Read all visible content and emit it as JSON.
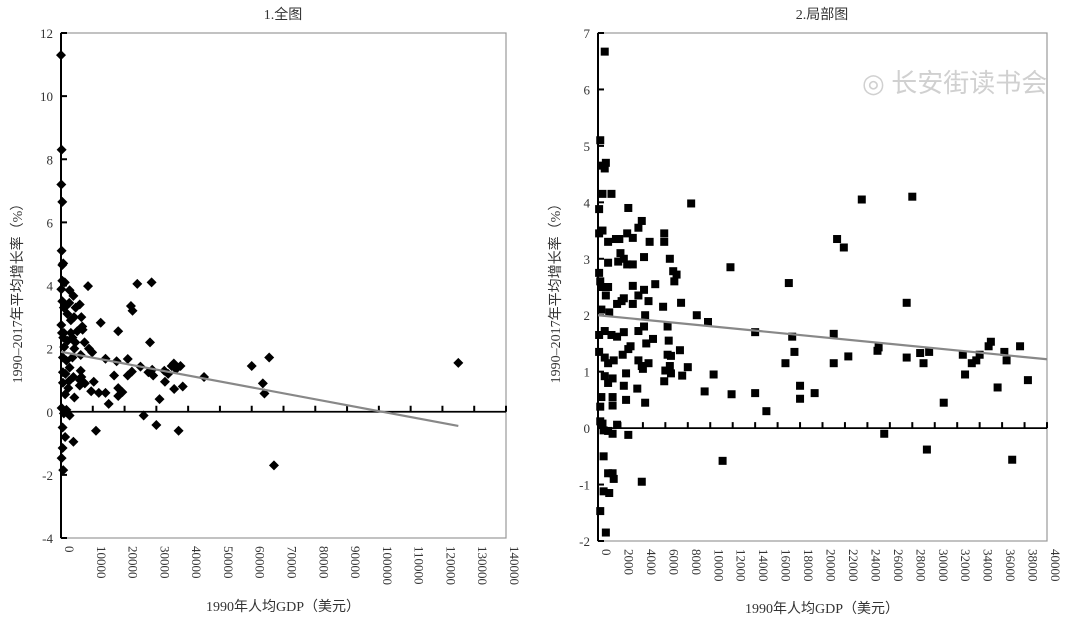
{
  "watermark": "长安街读书会",
  "colors": {
    "marker": "#000000",
    "trend": "#888888",
    "frame": "#999999",
    "axis": "#000000"
  },
  "chart_data": [
    {
      "type": "scatter",
      "title": "1.全图",
      "xlabel": "1990年人均GDP（美元）",
      "ylabel": "1990–2017年平均增长率（%）",
      "marker": "diamond",
      "xlim": [
        0,
        140000
      ],
      "ylim": [
        -4,
        12
      ],
      "xticks": [
        0,
        10000,
        20000,
        30000,
        40000,
        50000,
        60000,
        70000,
        80000,
        90000,
        100000,
        110000,
        120000,
        130000,
        140000
      ],
      "yticks": [
        -4,
        -2,
        0,
        2,
        4,
        6,
        8,
        10,
        12
      ],
      "trendline": {
        "x": [
          0,
          125000
        ],
        "y": [
          1.9,
          -0.45
        ]
      },
      "points": [
        [
          0,
          11.3
        ],
        [
          200,
          8.3
        ],
        [
          100,
          7.2
        ],
        [
          400,
          6.65
        ],
        [
          200,
          5.1
        ],
        [
          400,
          4.65
        ],
        [
          700,
          4.7
        ],
        [
          400,
          4.15
        ],
        [
          1200,
          4.1
        ],
        [
          100,
          3.88
        ],
        [
          2700,
          3.85
        ],
        [
          8500,
          3.98
        ],
        [
          24000,
          4.05
        ],
        [
          28500,
          4.1
        ],
        [
          22000,
          3.35
        ],
        [
          22500,
          3.2
        ],
        [
          18000,
          2.55
        ],
        [
          12500,
          2.82
        ],
        [
          28000,
          2.2
        ],
        [
          400,
          3.5
        ],
        [
          1600,
          3.35
        ],
        [
          2600,
          3.45
        ],
        [
          3900,
          3.67
        ],
        [
          4600,
          3.3
        ],
        [
          5900,
          3.4
        ],
        [
          900,
          3.3
        ],
        [
          2000,
          3.1
        ],
        [
          3100,
          2.9
        ],
        [
          4100,
          3.0
        ],
        [
          6400,
          3.0
        ],
        [
          6700,
          2.7
        ],
        [
          100,
          2.75
        ],
        [
          300,
          2.5
        ],
        [
          900,
          2.5
        ],
        [
          3100,
          2.5
        ],
        [
          5100,
          2.55
        ],
        [
          3600,
          2.35
        ],
        [
          6800,
          2.6
        ],
        [
          700,
          2.35
        ],
        [
          2100,
          2.25
        ],
        [
          4500,
          2.2
        ],
        [
          7400,
          2.2
        ],
        [
          1000,
          2.05
        ],
        [
          4200,
          2.0
        ],
        [
          8800,
          2.0
        ],
        [
          9800,
          1.88
        ],
        [
          600,
          1.72
        ],
        [
          1700,
          1.62
        ],
        [
          3600,
          1.72
        ],
        [
          6200,
          1.8
        ],
        [
          14000,
          1.68
        ],
        [
          17500,
          1.6
        ],
        [
          21000,
          1.67
        ],
        [
          25000,
          1.43
        ],
        [
          35500,
          1.53
        ],
        [
          34800,
          1.45
        ],
        [
          37600,
          1.45
        ],
        [
          600,
          1.25
        ],
        [
          1400,
          1.2
        ],
        [
          2700,
          1.4
        ],
        [
          3900,
          1.1
        ],
        [
          6200,
          1.3
        ],
        [
          6400,
          1.1
        ],
        [
          16700,
          1.15
        ],
        [
          21000,
          1.15
        ],
        [
          22300,
          1.27
        ],
        [
          27500,
          1.25
        ],
        [
          28700,
          1.33
        ],
        [
          29000,
          1.15
        ],
        [
          32500,
          1.3
        ],
        [
          33700,
          1.2
        ],
        [
          36200,
          1.35
        ],
        [
          45000,
          1.1
        ],
        [
          600,
          0.92
        ],
        [
          2500,
          0.97
        ],
        [
          6000,
          1.0
        ],
        [
          7500,
          0.9
        ],
        [
          10300,
          0.95
        ],
        [
          32700,
          0.95
        ],
        [
          38300,
          0.8
        ],
        [
          2300,
          0.75
        ],
        [
          5900,
          0.83
        ],
        [
          9500,
          0.65
        ],
        [
          11900,
          0.6
        ],
        [
          14000,
          0.6
        ],
        [
          18000,
          0.75
        ],
        [
          19300,
          0.62
        ],
        [
          35600,
          0.72
        ],
        [
          1300,
          0.55
        ],
        [
          4200,
          0.45
        ],
        [
          18000,
          0.5
        ],
        [
          31000,
          0.4
        ],
        [
          15000,
          0.25
        ],
        [
          200,
          0.12
        ],
        [
          1700,
          0.06
        ],
        [
          900,
          -0.05
        ],
        [
          2700,
          -0.12
        ],
        [
          26000,
          -0.12
        ],
        [
          30000,
          -0.42
        ],
        [
          11000,
          -0.6
        ],
        [
          37000,
          -0.6
        ],
        [
          500,
          -0.5
        ],
        [
          1300,
          -0.8
        ],
        [
          3900,
          -0.95
        ],
        [
          500,
          -1.15
        ],
        [
          200,
          -1.47
        ],
        [
          700,
          -1.85
        ],
        [
          60000,
          1.45
        ],
        [
          63500,
          0.9
        ],
        [
          64000,
          0.58
        ],
        [
          65500,
          1.72
        ],
        [
          67000,
          -1.7
        ],
        [
          125000,
          1.55
        ]
      ]
    },
    {
      "type": "scatter",
      "title": "2.局部图",
      "xlabel": "1990年人均GDP（美元）",
      "ylabel": "1990–2017年平均增长率（%）",
      "marker": "square",
      "xlim": [
        0,
        40000
      ],
      "ylim": [
        -2,
        7
      ],
      "xticks": [
        0,
        2000,
        4000,
        6000,
        8000,
        10000,
        12000,
        14000,
        16000,
        18000,
        20000,
        22000,
        24000,
        26000,
        28000,
        30000,
        32000,
        34000,
        36000,
        38000,
        40000
      ],
      "yticks": [
        -2,
        -1,
        0,
        1,
        2,
        3,
        4,
        5,
        6,
        7
      ],
      "trendline": {
        "x": [
          0,
          40000
        ],
        "y": [
          2.0,
          1.22
        ]
      },
      "points": [
        [
          600,
          6.67
        ],
        [
          200,
          5.1
        ],
        [
          400,
          4.65
        ],
        [
          700,
          4.7
        ],
        [
          600,
          4.6
        ],
        [
          400,
          4.15
        ],
        [
          1200,
          4.15
        ],
        [
          100,
          3.88
        ],
        [
          2700,
          3.9
        ],
        [
          8300,
          3.98
        ],
        [
          23500,
          4.05
        ],
        [
          28000,
          4.1
        ],
        [
          400,
          3.5
        ],
        [
          100,
          3.45
        ],
        [
          1600,
          3.35
        ],
        [
          1900,
          3.35
        ],
        [
          2600,
          3.45
        ],
        [
          3100,
          3.37
        ],
        [
          3900,
          3.67
        ],
        [
          3600,
          3.55
        ],
        [
          4600,
          3.3
        ],
        [
          5900,
          3.45
        ],
        [
          5900,
          3.3
        ],
        [
          900,
          3.3
        ],
        [
          2000,
          3.1
        ],
        [
          2300,
          3.0
        ],
        [
          1800,
          2.95
        ],
        [
          2600,
          2.9
        ],
        [
          3100,
          2.9
        ],
        [
          4100,
          3.03
        ],
        [
          6400,
          3.0
        ],
        [
          900,
          2.93
        ],
        [
          6700,
          2.78
        ],
        [
          7000,
          2.72
        ],
        [
          11800,
          2.85
        ],
        [
          21300,
          3.35
        ],
        [
          21900,
          3.2
        ],
        [
          100,
          2.75
        ],
        [
          200,
          2.6
        ],
        [
          300,
          2.5
        ],
        [
          900,
          2.5
        ],
        [
          3100,
          2.52
        ],
        [
          5100,
          2.55
        ],
        [
          4100,
          2.45
        ],
        [
          3600,
          2.35
        ],
        [
          6800,
          2.6
        ],
        [
          17000,
          2.57
        ],
        [
          27500,
          2.22
        ],
        [
          700,
          2.35
        ],
        [
          1700,
          2.2
        ],
        [
          2100,
          2.25
        ],
        [
          2300,
          2.3
        ],
        [
          3100,
          2.2
        ],
        [
          4500,
          2.25
        ],
        [
          5800,
          2.15
        ],
        [
          7400,
          2.22
        ],
        [
          300,
          2.1
        ],
        [
          1000,
          2.05
        ],
        [
          4200,
          2.0
        ],
        [
          8800,
          2.0
        ],
        [
          9800,
          1.88
        ],
        [
          100,
          1.65
        ],
        [
          600,
          1.72
        ],
        [
          1200,
          1.65
        ],
        [
          1700,
          1.62
        ],
        [
          2300,
          1.7
        ],
        [
          3600,
          1.72
        ],
        [
          4100,
          1.8
        ],
        [
          4300,
          1.5
        ],
        [
          4900,
          1.58
        ],
        [
          6200,
          1.8
        ],
        [
          6300,
          1.55
        ],
        [
          7300,
          1.38
        ],
        [
          14000,
          1.7
        ],
        [
          17300,
          1.62
        ],
        [
          21000,
          1.67
        ],
        [
          25000,
          1.43
        ],
        [
          35000,
          1.53
        ],
        [
          34800,
          1.45
        ],
        [
          37600,
          1.45
        ],
        [
          100,
          1.35
        ],
        [
          600,
          1.25
        ],
        [
          900,
          1.15
        ],
        [
          1400,
          1.2
        ],
        [
          2200,
          1.3
        ],
        [
          2700,
          1.4
        ],
        [
          2900,
          1.45
        ],
        [
          3600,
          1.2
        ],
        [
          3900,
          1.1
        ],
        [
          4500,
          1.15
        ],
        [
          6200,
          1.3
        ],
        [
          6500,
          1.28
        ],
        [
          6400,
          1.1
        ],
        [
          16700,
          1.15
        ],
        [
          17500,
          1.35
        ],
        [
          21000,
          1.15
        ],
        [
          22300,
          1.27
        ],
        [
          24900,
          1.37
        ],
        [
          27500,
          1.25
        ],
        [
          28700,
          1.33
        ],
        [
          29000,
          1.15
        ],
        [
          29500,
          1.35
        ],
        [
          32500,
          1.3
        ],
        [
          33300,
          1.15
        ],
        [
          33700,
          1.2
        ],
        [
          34000,
          1.3
        ],
        [
          36200,
          1.35
        ],
        [
          36400,
          1.2
        ],
        [
          600,
          0.92
        ],
        [
          1300,
          0.88
        ],
        [
          2500,
          0.97
        ],
        [
          4000,
          1.05
        ],
        [
          6000,
          1.02
        ],
        [
          6500,
          0.97
        ],
        [
          7500,
          0.93
        ],
        [
          8000,
          1.08
        ],
        [
          10300,
          0.95
        ],
        [
          32700,
          0.95
        ],
        [
          38300,
          0.85
        ],
        [
          900,
          0.8
        ],
        [
          2300,
          0.75
        ],
        [
          3500,
          0.7
        ],
        [
          5900,
          0.83
        ],
        [
          9500,
          0.65
        ],
        [
          11900,
          0.6
        ],
        [
          14000,
          0.62
        ],
        [
          18000,
          0.75
        ],
        [
          19300,
          0.62
        ],
        [
          35600,
          0.72
        ],
        [
          300,
          0.55
        ],
        [
          1300,
          0.55
        ],
        [
          2500,
          0.5
        ],
        [
          4200,
          0.45
        ],
        [
          18000,
          0.52
        ],
        [
          30800,
          0.45
        ],
        [
          200,
          0.38
        ],
        [
          1300,
          0.4
        ],
        [
          15000,
          0.3
        ],
        [
          200,
          0.12
        ],
        [
          400,
          0.08
        ],
        [
          1700,
          0.06
        ],
        [
          500,
          -0.04
        ],
        [
          900,
          -0.05
        ],
        [
          1300,
          -0.1
        ],
        [
          2700,
          -0.12
        ],
        [
          25500,
          -0.1
        ],
        [
          29300,
          -0.38
        ],
        [
          11100,
          -0.58
        ],
        [
          36900,
          -0.56
        ],
        [
          500,
          -0.5
        ],
        [
          900,
          -0.8
        ],
        [
          1300,
          -0.8
        ],
        [
          1400,
          -0.9
        ],
        [
          3900,
          -0.95
        ],
        [
          500,
          -1.12
        ],
        [
          1000,
          -1.15
        ],
        [
          200,
          -1.47
        ],
        [
          700,
          -1.85
        ]
      ]
    }
  ]
}
